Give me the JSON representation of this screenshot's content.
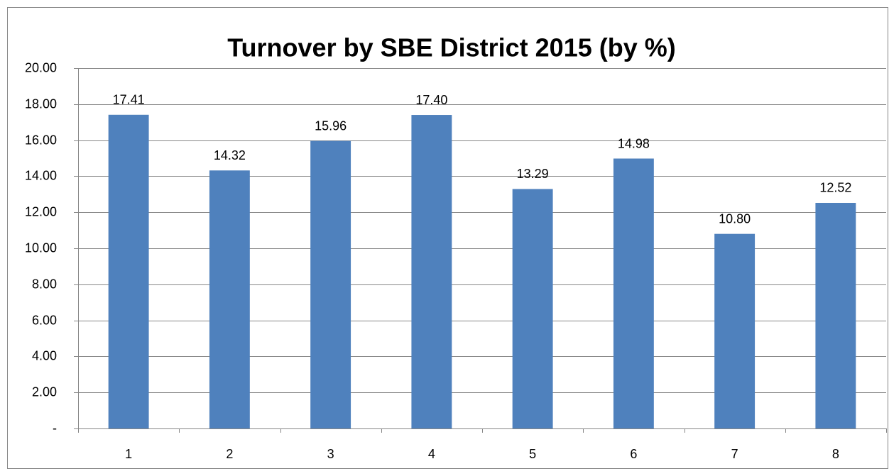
{
  "chart_data": {
    "type": "bar",
    "title": "Turnover by SBE District 2015 (by %)",
    "categories": [
      "1",
      "2",
      "3",
      "4",
      "5",
      "6",
      "7",
      "8"
    ],
    "values": [
      17.41,
      14.32,
      15.96,
      17.4,
      13.29,
      14.98,
      10.8,
      12.52
    ],
    "value_labels": [
      "17.41",
      "14.32",
      "15.96",
      "17.40",
      "13.29",
      "14.98",
      "10.80",
      "12.52"
    ],
    "color": "#4f81bd",
    "ylim": [
      0,
      20
    ],
    "yticks": [
      {
        "value": 0,
        "label": "-"
      },
      {
        "value": 2,
        "label": "2.00"
      },
      {
        "value": 4,
        "label": "4.00"
      },
      {
        "value": 6,
        "label": "6.00"
      },
      {
        "value": 8,
        "label": "8.00"
      },
      {
        "value": 10,
        "label": "10.00"
      },
      {
        "value": 12,
        "label": "12.00"
      },
      {
        "value": 14,
        "label": "14.00"
      },
      {
        "value": 16,
        "label": "16.00"
      },
      {
        "value": 18,
        "label": "18.00"
      },
      {
        "value": 20,
        "label": "20.00"
      }
    ],
    "grid": true
  }
}
